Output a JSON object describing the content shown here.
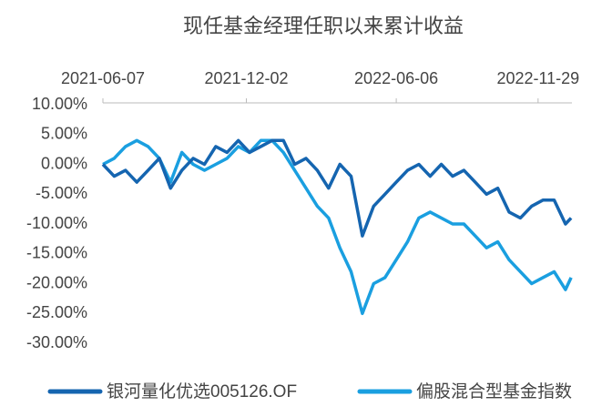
{
  "chart_data": {
    "type": "line",
    "title": "现任基金经理任职以来累计收益",
    "x": [
      "2021-06-07",
      "2021-06-21",
      "2021-07-05",
      "2021-07-19",
      "2021-08-02",
      "2021-08-16",
      "2021-08-30",
      "2021-09-13",
      "2021-09-27",
      "2021-10-11",
      "2021-10-25",
      "2021-11-08",
      "2021-11-22",
      "2021-12-06",
      "2021-12-20",
      "2022-01-03",
      "2022-01-17",
      "2022-01-31",
      "2022-02-14",
      "2022-02-28",
      "2022-03-14",
      "2022-03-28",
      "2022-04-11",
      "2022-04-25",
      "2022-05-09",
      "2022-05-23",
      "2022-06-06",
      "2022-06-20",
      "2022-07-04",
      "2022-07-18",
      "2022-08-01",
      "2022-08-15",
      "2022-08-29",
      "2022-09-12",
      "2022-09-26",
      "2022-10-10",
      "2022-10-24",
      "2022-11-07",
      "2022-11-21",
      "2022-12-05",
      "2022-12-19",
      "2023-01-02",
      "2023-01-09"
    ],
    "series": [
      {
        "name": "银河量化优选005126.OF",
        "color": "#1565b0",
        "values": [
          0,
          -2,
          -1,
          -3,
          -1,
          1,
          -4,
          -1,
          1,
          0,
          3,
          2,
          4,
          2,
          3,
          4,
          4,
          0,
          1,
          -1,
          -4,
          0,
          -2,
          -12,
          -7,
          -5,
          -3,
          -1,
          0,
          -2,
          0,
          -2,
          -1,
          -3,
          -5,
          -4,
          -8,
          -9,
          -7,
          -6,
          -6,
          -10,
          -9
        ]
      },
      {
        "name": "偏股混合型基金指数",
        "color": "#1a9fe0",
        "values": [
          0,
          1,
          3,
          4,
          3,
          1,
          -3,
          2,
          0,
          -1,
          0,
          1,
          3,
          2,
          4,
          4,
          2,
          -1,
          -4,
          -7,
          -9,
          -14,
          -18,
          -25,
          -20,
          -19,
          -16,
          -13,
          -9,
          -8,
          -9,
          -10,
          -10,
          -12,
          -14,
          -13,
          -16,
          -18,
          -20,
          -19,
          -18,
          -21,
          -19
        ]
      }
    ],
    "xlim": [
      "2021-06-07",
      "2023-01-10"
    ],
    "xticks": [
      "2021-06-07",
      "2021-12-02",
      "2022-06-06",
      "2022-11-29"
    ],
    "ylim": [
      -30,
      10
    ],
    "yticks": [
      {
        "value": 10,
        "label": "10.00%"
      },
      {
        "value": 5,
        "label": "5.00%"
      },
      {
        "value": 0,
        "label": "0.00%"
      },
      {
        "value": -5,
        "label": "-5.00%"
      },
      {
        "value": -10,
        "label": "-10.00%"
      },
      {
        "value": -15,
        "label": "-15.00%"
      },
      {
        "value": -20,
        "label": "-20.00%"
      },
      {
        "value": -25,
        "label": "-25.00%"
      },
      {
        "value": -30,
        "label": "-30.00%"
      }
    ]
  }
}
